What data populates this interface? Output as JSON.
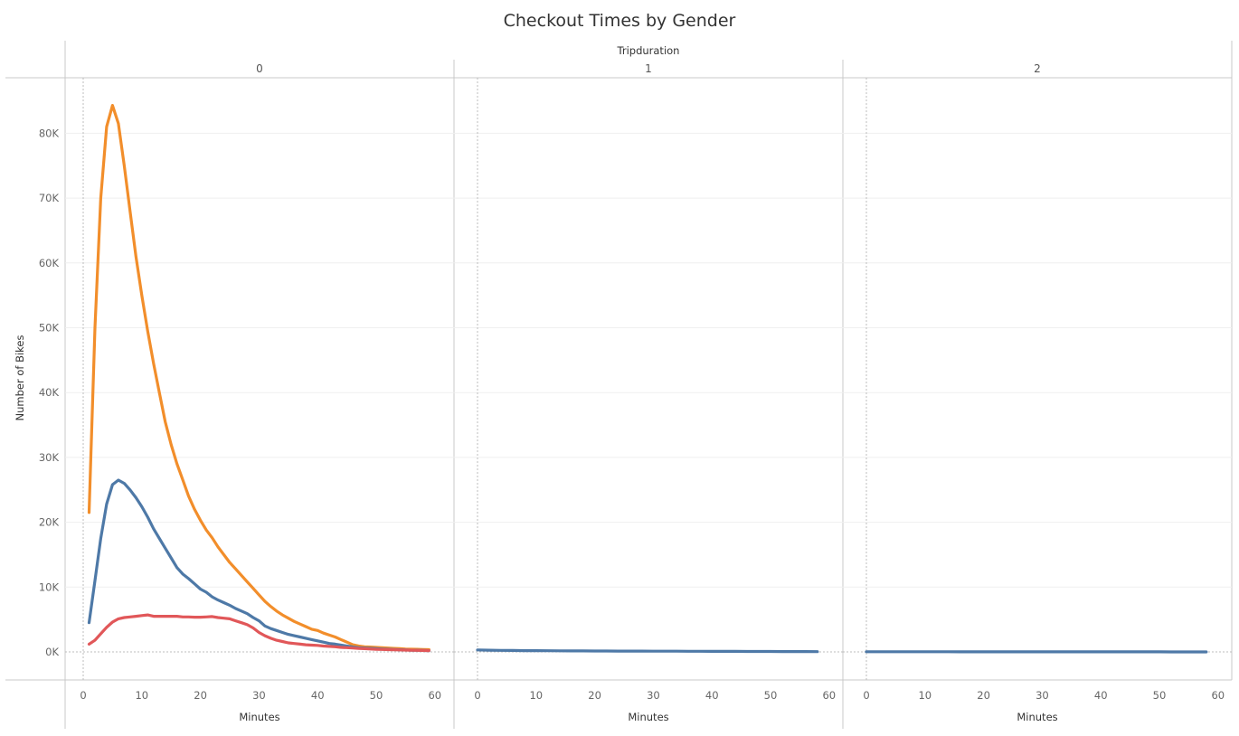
{
  "chart_data": {
    "type": "line",
    "title": "Checkout Times by Gender",
    "column_header": "Tripduration",
    "panels": [
      "0",
      "1",
      "2"
    ],
    "xlabel": "Minutes",
    "ylabel": "Number of Bikes",
    "xlim": [
      0,
      60
    ],
    "ylim": [
      0,
      90000
    ],
    "x_ticks": [
      "0",
      "10",
      "20",
      "30",
      "40",
      "50",
      "60"
    ],
    "y_ticks": [
      "0K",
      "10K",
      "20K",
      "30K",
      "40K",
      "50K",
      "60K",
      "70K",
      "80K"
    ],
    "grid": true,
    "legend": "none",
    "series": [
      {
        "color": "#f28e2b",
        "panel": 0,
        "x": [
          1,
          2,
          3,
          4,
          5,
          6,
          7,
          8,
          9,
          10,
          11,
          12,
          13,
          14,
          15,
          16,
          17,
          18,
          19,
          20,
          21,
          22,
          23,
          24,
          25,
          26,
          27,
          28,
          29,
          30,
          31,
          32,
          33,
          34,
          35,
          36,
          37,
          38,
          39,
          40,
          41,
          42,
          43,
          44,
          45,
          46,
          47,
          48,
          49,
          50,
          51,
          52,
          53,
          54,
          55,
          56,
          57,
          58,
          59
        ],
        "y": [
          21500,
          50000,
          70000,
          81000,
          84300,
          81500,
          75000,
          68000,
          61000,
          55000,
          49500,
          44500,
          40000,
          35500,
          32000,
          29000,
          26500,
          24000,
          22000,
          20300,
          18800,
          17600,
          16200,
          15000,
          13800,
          12800,
          11800,
          10800,
          9800,
          8800,
          7800,
          7000,
          6300,
          5700,
          5200,
          4700,
          4300,
          3900,
          3500,
          3300,
          2900,
          2600,
          2300,
          1900,
          1500,
          1100,
          900,
          800,
          750,
          700,
          650,
          600,
          550,
          500,
          450,
          420,
          400,
          370,
          350
        ]
      },
      {
        "color": "#4e79a7",
        "panel": 0,
        "x": [
          1,
          2,
          3,
          4,
          5,
          6,
          7,
          8,
          9,
          10,
          11,
          12,
          13,
          14,
          15,
          16,
          17,
          18,
          19,
          20,
          21,
          22,
          23,
          24,
          25,
          26,
          27,
          28,
          29,
          30,
          31,
          32,
          33,
          34,
          35,
          36,
          37,
          38,
          39,
          40,
          41,
          42,
          43,
          44,
          45,
          46,
          47,
          48,
          49,
          50,
          51,
          52,
          53,
          54,
          55,
          56,
          57,
          58,
          59
        ],
        "y": [
          4500,
          11000,
          17500,
          22800,
          25800,
          26500,
          26000,
          25000,
          23800,
          22400,
          20800,
          19000,
          17500,
          16000,
          14500,
          13000,
          12000,
          11300,
          10500,
          9700,
          9200,
          8500,
          8000,
          7600,
          7200,
          6700,
          6300,
          5900,
          5300,
          4800,
          4000,
          3600,
          3300,
          3000,
          2700,
          2500,
          2300,
          2100,
          1900,
          1700,
          1500,
          1300,
          1200,
          1050,
          900,
          750,
          650,
          600,
          550,
          500,
          450,
          400,
          370,
          330,
          300,
          270,
          250,
          230,
          200
        ]
      },
      {
        "color": "#e15759",
        "panel": 0,
        "x": [
          1,
          2,
          3,
          4,
          5,
          6,
          7,
          8,
          9,
          10,
          11,
          12,
          13,
          14,
          15,
          16,
          17,
          18,
          19,
          20,
          21,
          22,
          23,
          24,
          25,
          26,
          27,
          28,
          29,
          30,
          31,
          32,
          33,
          34,
          35,
          36,
          37,
          38,
          39,
          40,
          41,
          42,
          43,
          44,
          45,
          46,
          47,
          48,
          49,
          50,
          51,
          52,
          53,
          54,
          55,
          56,
          57,
          58,
          59
        ],
        "y": [
          1200,
          1800,
          2800,
          3800,
          4600,
          5100,
          5300,
          5400,
          5500,
          5600,
          5700,
          5500,
          5500,
          5500,
          5500,
          5500,
          5400,
          5400,
          5350,
          5350,
          5400,
          5450,
          5300,
          5200,
          5100,
          4800,
          4500,
          4200,
          3700,
          3000,
          2500,
          2100,
          1800,
          1600,
          1400,
          1300,
          1200,
          1100,
          1050,
          1000,
          900,
          850,
          800,
          700,
          650,
          600,
          550,
          500,
          450,
          400,
          380,
          350,
          330,
          300,
          280,
          260,
          240,
          220,
          200
        ]
      },
      {
        "color": "#4e79a7",
        "panel": 1,
        "x": [
          0,
          2,
          4,
          6,
          8,
          10,
          12,
          14,
          16,
          18,
          20,
          22,
          24,
          26,
          28,
          30,
          32,
          34,
          36,
          38,
          40,
          42,
          44,
          46,
          48,
          50,
          52,
          54,
          56,
          58
        ],
        "y": [
          300,
          270,
          240,
          220,
          200,
          190,
          180,
          170,
          160,
          150,
          145,
          140,
          130,
          125,
          120,
          115,
          110,
          105,
          100,
          95,
          90,
          85,
          80,
          75,
          70,
          65,
          60,
          55,
          50,
          45
        ]
      },
      {
        "color": "#4e79a7",
        "panel": 2,
        "x": [
          0,
          2,
          4,
          6,
          8,
          10,
          12,
          14,
          16,
          18,
          20,
          22,
          24,
          26,
          28,
          30,
          32,
          34,
          36,
          38,
          40,
          42,
          44,
          46,
          48,
          50,
          52,
          54,
          56,
          58
        ],
        "y": [
          30,
          28,
          26,
          25,
          24,
          23,
          22,
          21,
          20,
          19,
          18,
          17,
          16,
          15,
          14,
          13,
          12,
          11,
          10,
          10,
          9,
          9,
          8,
          8,
          7,
          7,
          6,
          6,
          5,
          5
        ]
      }
    ]
  }
}
